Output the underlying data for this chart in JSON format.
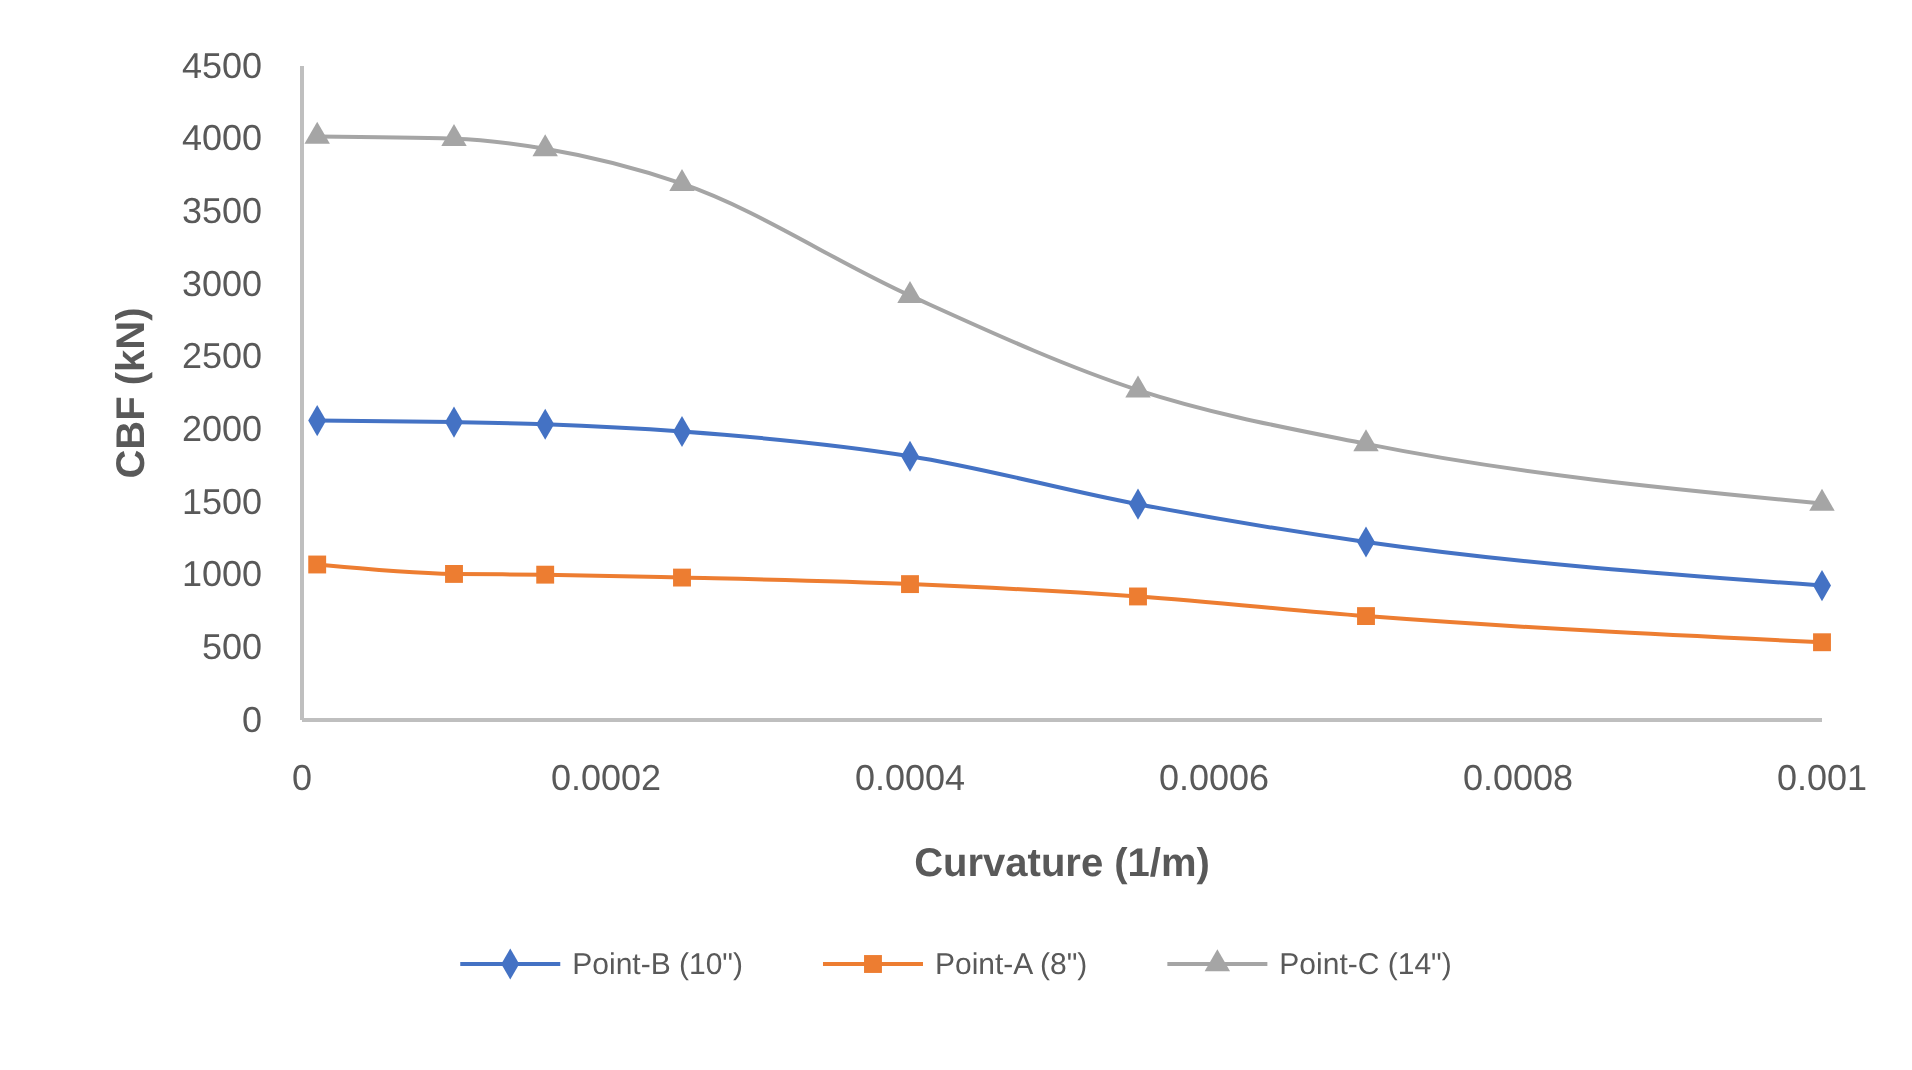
{
  "chart_data": {
    "type": "line",
    "xlabel": "Curvature (1/m)",
    "ylabel": "CBF (kN)",
    "xlim": [
      0,
      0.001
    ],
    "xticks": [
      0,
      0.0002,
      0.0004,
      0.0006,
      0.0008,
      0.001
    ],
    "ylim": [
      0,
      4500
    ],
    "yticks": [
      0,
      500,
      1000,
      1500,
      2000,
      2500,
      3000,
      3500,
      4000,
      4500
    ],
    "x": [
      1e-05,
      0.0001,
      0.00016,
      0.00025,
      0.0004,
      0.00055,
      0.0007,
      0.001
    ],
    "grid": false,
    "legend": "bottom",
    "line_style": "solid",
    "series": [
      {
        "name": "Point-B (10\")",
        "color": "#4472c4",
        "marker": "diamond",
        "values": [
          2060,
          2050,
          2035,
          1985,
          1815,
          1485,
          1225,
          925
        ]
      },
      {
        "name": "Point-A (8\")",
        "color": "#ed7d31",
        "marker": "square",
        "values": [
          1070,
          1005,
          1000,
          980,
          935,
          850,
          715,
          535
        ]
      },
      {
        "name": "Point-C (14\")",
        "color": "#a5a5a5",
        "marker": "triangle",
        "values": [
          4015,
          4000,
          3930,
          3690,
          2920,
          2270,
          1900,
          1490
        ]
      }
    ]
  }
}
